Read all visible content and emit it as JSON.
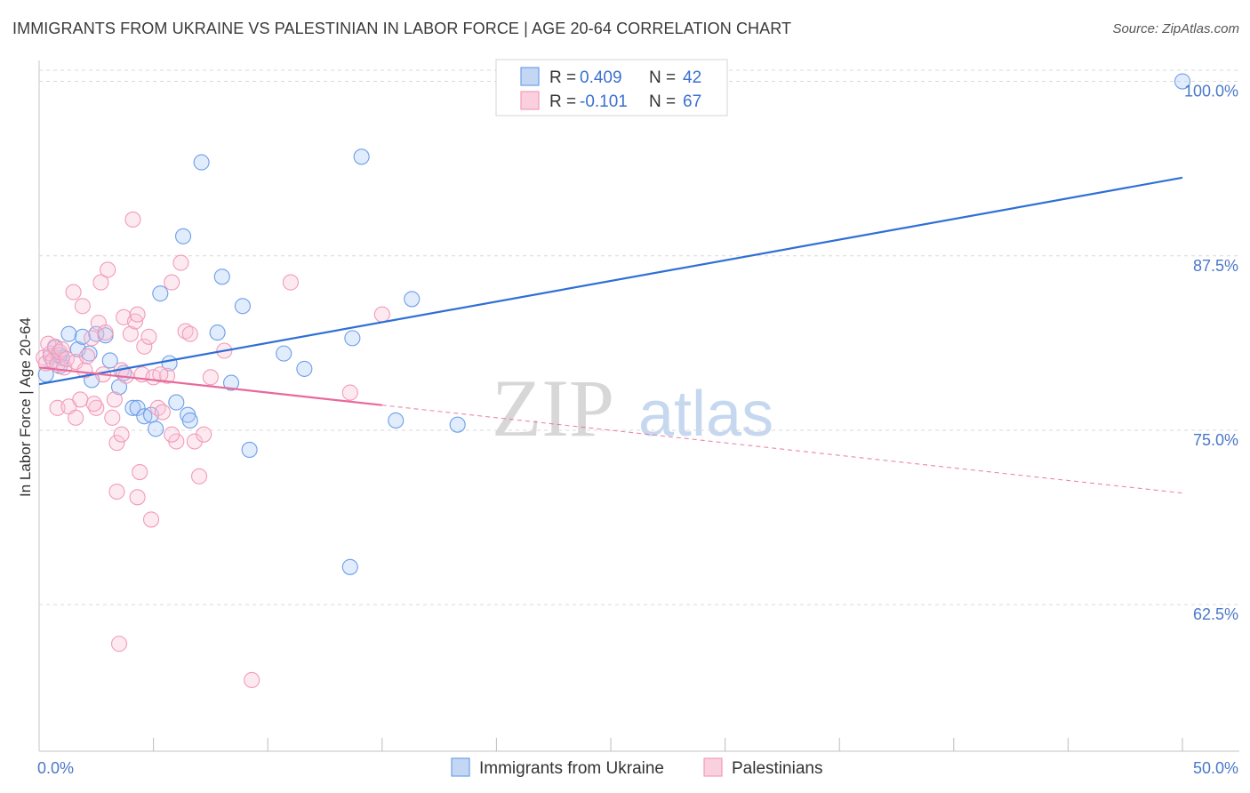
{
  "title": "IMMIGRANTS FROM UKRAINE VS PALESTINIAN IN LABOR FORCE | AGE 20-64 CORRELATION CHART",
  "source": "Source: ZipAtlas.com",
  "watermark": {
    "zip": "ZIP",
    "atlas": "atlas"
  },
  "chart_data": {
    "type": "scatter",
    "title": "IMMIGRANTS FROM UKRAINE VS PALESTINIAN IN LABOR FORCE | AGE 20-64 CORRELATION CHART",
    "xlabel": "",
    "ylabel": "In Labor Force | Age 20-64",
    "xlim": [
      0,
      50
    ],
    "ylim": [
      52,
      101.5
    ],
    "x_tick_labels": [
      {
        "value": 0,
        "label": "0.0%"
      },
      {
        "value": 50,
        "label": "50.0%"
      }
    ],
    "y_ticks": [
      {
        "value": 100,
        "label": "100.0%"
      },
      {
        "value": 87.5,
        "label": "87.5%"
      },
      {
        "value": 75,
        "label": "75.0%"
      },
      {
        "value": 62.5,
        "label": "62.5%"
      }
    ],
    "x_minor_ticks": [
      5,
      10,
      15,
      20,
      25,
      30,
      35,
      40,
      45,
      50
    ],
    "colors": {
      "ukraine": "#6d9eeb",
      "ukraine_line": "#2f6fd6",
      "palestinian": "#f29bb8",
      "palestinian_line": "#e8699a"
    },
    "legend": [
      {
        "r_label": "R = ",
        "r_value": "0.409",
        "n_label": "N = ",
        "n_value": "42"
      },
      {
        "r_label": "R = ",
        "r_value": "-0.101",
        "n_label": "N = ",
        "n_value": "67"
      }
    ],
    "series": [
      {
        "name": "Immigrants from Ukraine",
        "trend": {
          "x0": 0,
          "y0": 78.3,
          "x1": 50,
          "y1": 93.1,
          "solid_until": 50
        },
        "points": [
          [
            0.3,
            79.0
          ],
          [
            0.5,
            80.3
          ],
          [
            0.7,
            80.9
          ],
          [
            0.9,
            79.6
          ],
          [
            1.0,
            80.2
          ],
          [
            1.3,
            81.9
          ],
          [
            1.7,
            80.8
          ],
          [
            1.9,
            81.7
          ],
          [
            2.2,
            80.5
          ],
          [
            2.3,
            78.6
          ],
          [
            2.5,
            81.9
          ],
          [
            2.9,
            81.8
          ],
          [
            3.1,
            80.0
          ],
          [
            3.5,
            78.1
          ],
          [
            3.7,
            79.1
          ],
          [
            4.1,
            76.6
          ],
          [
            4.3,
            76.6
          ],
          [
            4.6,
            76.0
          ],
          [
            4.9,
            76.1
          ],
          [
            5.1,
            75.1
          ],
          [
            5.3,
            84.8
          ],
          [
            5.7,
            79.8
          ],
          [
            6.0,
            77.0
          ],
          [
            6.3,
            88.9
          ],
          [
            6.5,
            76.1
          ],
          [
            6.6,
            75.7
          ],
          [
            7.1,
            94.2
          ],
          [
            7.8,
            82.0
          ],
          [
            8.0,
            86.0
          ],
          [
            8.4,
            78.4
          ],
          [
            8.9,
            83.9
          ],
          [
            9.2,
            73.6
          ],
          [
            10.7,
            80.5
          ],
          [
            11.6,
            79.4
          ],
          [
            13.7,
            81.6
          ],
          [
            13.6,
            65.2
          ],
          [
            14.1,
            94.6
          ],
          [
            15.6,
            75.7
          ],
          [
            16.3,
            84.4
          ],
          [
            18.3,
            75.4
          ],
          [
            50.0,
            100.0
          ],
          [
            0.9,
            80.4
          ]
        ]
      },
      {
        "name": "Palestinians",
        "trend": {
          "x0": 0,
          "y0": 79.5,
          "x1": 50,
          "y1": 70.5,
          "solid_until": 15
        },
        "points": [
          [
            0.2,
            80.2
          ],
          [
            0.3,
            79.8
          ],
          [
            0.4,
            81.2
          ],
          [
            0.5,
            80.5
          ],
          [
            0.6,
            80.0
          ],
          [
            0.7,
            81.0
          ],
          [
            0.8,
            79.7
          ],
          [
            0.9,
            80.6
          ],
          [
            1.0,
            80.8
          ],
          [
            1.1,
            79.5
          ],
          [
            1.2,
            80.1
          ],
          [
            0.8,
            76.6
          ],
          [
            1.3,
            76.7
          ],
          [
            1.5,
            84.9
          ],
          [
            1.6,
            79.9
          ],
          [
            1.8,
            77.2
          ],
          [
            1.9,
            83.9
          ],
          [
            2.0,
            79.3
          ],
          [
            2.1,
            80.3
          ],
          [
            2.3,
            81.6
          ],
          [
            2.5,
            76.6
          ],
          [
            2.6,
            82.7
          ],
          [
            2.7,
            85.6
          ],
          [
            2.8,
            79.0
          ],
          [
            2.9,
            82.0
          ],
          [
            3.0,
            86.5
          ],
          [
            3.2,
            75.9
          ],
          [
            3.3,
            77.2
          ],
          [
            3.4,
            74.1
          ],
          [
            3.6,
            79.3
          ],
          [
            3.7,
            83.1
          ],
          [
            3.8,
            78.9
          ],
          [
            4.0,
            81.9
          ],
          [
            4.2,
            82.8
          ],
          [
            4.3,
            83.3
          ],
          [
            4.5,
            79.0
          ],
          [
            4.6,
            81.0
          ],
          [
            4.8,
            81.7
          ],
          [
            5.0,
            78.8
          ],
          [
            5.2,
            76.6
          ],
          [
            5.4,
            76.3
          ],
          [
            5.6,
            78.9
          ],
          [
            5.8,
            85.6
          ],
          [
            6.0,
            74.2
          ],
          [
            6.2,
            87.0
          ],
          [
            6.4,
            82.1
          ],
          [
            6.6,
            81.9
          ],
          [
            6.8,
            74.2
          ],
          [
            7.0,
            71.7
          ],
          [
            7.2,
            74.7
          ],
          [
            7.5,
            78.8
          ],
          [
            8.1,
            80.7
          ],
          [
            9.3,
            57.1
          ],
          [
            3.4,
            70.6
          ],
          [
            4.4,
            72.0
          ],
          [
            4.3,
            70.2
          ],
          [
            4.9,
            68.6
          ],
          [
            3.5,
            59.7
          ],
          [
            3.6,
            74.7
          ],
          [
            1.6,
            75.9
          ],
          [
            11.0,
            85.6
          ],
          [
            13.6,
            77.7
          ],
          [
            15.0,
            83.3
          ],
          [
            2.4,
            76.9
          ],
          [
            4.1,
            90.1
          ],
          [
            5.3,
            79.0
          ],
          [
            5.8,
            74.7
          ]
        ]
      }
    ]
  }
}
